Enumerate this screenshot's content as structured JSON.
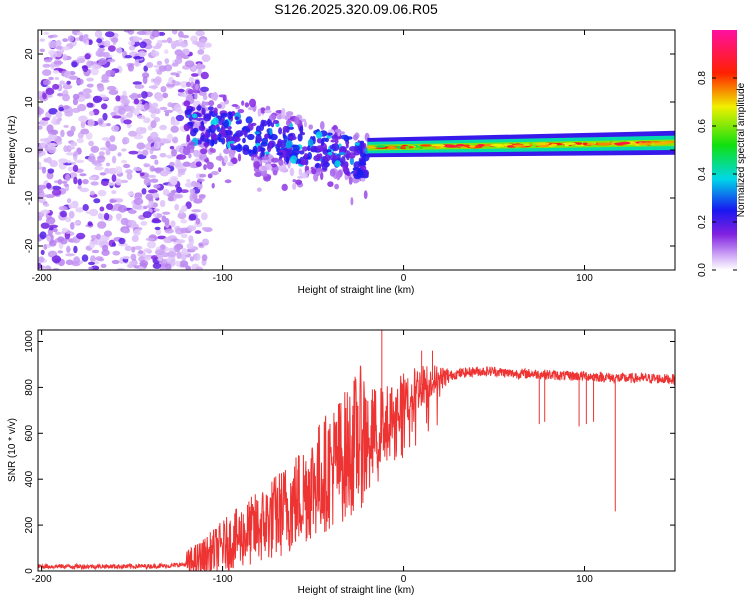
{
  "title": "S126.2025.320.09.06.R05",
  "chart_data": [
    {
      "type": "heatmap",
      "title": "S126.2025.320.09.06.R05",
      "xlabel": "Height of straight line (km)",
      "ylabel": "Frequency (Hz)",
      "xlim": [
        -202,
        150
      ],
      "ylim": [
        -25,
        25
      ],
      "xticks": [
        -200,
        -100,
        0,
        100
      ],
      "yticks": [
        -20,
        -10,
        0,
        10,
        20
      ],
      "colorbar": {
        "label": "Normalized spectral amplitude",
        "range": [
          0,
          1
        ],
        "ticks": [
          "0.0",
          "0.2",
          "0.4",
          "0.6",
          "0.8"
        ],
        "tick_values": [
          0.0,
          0.2,
          0.4,
          0.6,
          0.8
        ]
      },
      "features": [
        {
          "name": "noise",
          "x_range": [
            -202,
            -120
          ],
          "freq_range": [
            -25,
            25
          ],
          "amplitude": 0.1
        },
        {
          "name": "scatter",
          "x_range": [
            -120,
            -20
          ],
          "freq_center_start": 6,
          "freq_center_end": -2,
          "amplitude": 0.2
        },
        {
          "name": "carrier",
          "x_range": [
            -20,
            150
          ],
          "freq_start": 0.5,
          "freq_end": 1.5,
          "amplitude": 0.9
        }
      ]
    },
    {
      "type": "line",
      "xlabel": "Height of straight line (km)",
      "ylabel": "SNR (10 * v/v)",
      "xlim": [
        -202,
        150
      ],
      "ylim": [
        0,
        1050
      ],
      "xticks": [
        -200,
        -100,
        0,
        100
      ],
      "yticks": [
        0,
        200,
        400,
        600,
        800,
        1000
      ],
      "color": "#ee3333",
      "series": [
        {
          "name": "SNR",
          "x": [
            -202,
            -150,
            -130,
            -120,
            -110,
            -100,
            -90,
            -80,
            -70,
            -60,
            -50,
            -40,
            -30,
            -25,
            -20,
            -15,
            -10,
            -5,
            0,
            5,
            10,
            15,
            20,
            25,
            30,
            40,
            50,
            60,
            70,
            80,
            90,
            100,
            110,
            120,
            130,
            140,
            150
          ],
          "values": [
            20,
            20,
            22,
            30,
            60,
            110,
            150,
            190,
            240,
            300,
            380,
            450,
            520,
            580,
            600,
            620,
            650,
            690,
            740,
            780,
            810,
            830,
            840,
            850,
            860,
            870,
            870,
            860,
            860,
            855,
            850,
            850,
            845,
            840,
            840,
            838,
            835
          ]
        }
      ],
      "dips": [
        {
          "x": 75,
          "y": 640
        },
        {
          "x": 78,
          "y": 650
        },
        {
          "x": 97,
          "y": 630
        },
        {
          "x": 101,
          "y": 640
        },
        {
          "x": 105,
          "y": 650
        },
        {
          "x": 117,
          "y": 260
        }
      ],
      "spikes": [
        {
          "x": -28,
          "y": 720
        },
        {
          "x": -12,
          "y": 1050
        },
        {
          "x": 10,
          "y": 960
        },
        {
          "x": 16,
          "y": 960
        }
      ]
    }
  ]
}
